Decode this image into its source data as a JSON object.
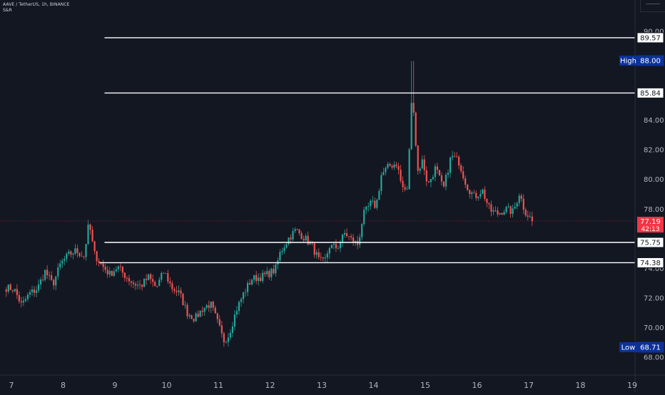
{
  "header": {
    "symbol_text": "AAVE / TetherUS, 1h, BINANCE",
    "indicator_text": "S&R"
  },
  "colors": {
    "background": "#131722",
    "up": "#26a69a",
    "down": "#ef5350",
    "level_line": "#ffffff",
    "axis_text": "#b2b5be",
    "high_low_badge": "#0c3299",
    "current_price_badge": "#f23645"
  },
  "chart_data": {
    "type": "candlestick",
    "symbol": "AAVE / TetherUS",
    "interval": "1h",
    "exchange": "BINANCE",
    "x_ticks": [
      "7",
      "8",
      "9",
      "10",
      "11",
      "12",
      "13",
      "14",
      "15",
      "16",
      "17",
      "18",
      "19"
    ],
    "y_ticks": [
      "68.00",
      "70.00",
      "72.00",
      "74.00",
      "78.00",
      "80.00",
      "82.00",
      "84.00",
      "90.00"
    ],
    "ylim": [
      67.2,
      90.4
    ],
    "xlim": [
      7.0,
      19.0
    ],
    "levels": [
      {
        "value": 89.57,
        "label": "89.57",
        "start_day": 8.8
      },
      {
        "value": 85.84,
        "label": "85.84",
        "start_day": 8.8
      },
      {
        "value": 75.75,
        "label": "75.75",
        "start_day": 8.8
      },
      {
        "value": 74.38,
        "label": "74.38",
        "start_day": 8.7
      }
    ],
    "high": {
      "label": "High",
      "value": "88.00"
    },
    "low": {
      "label": "Low",
      "value": "68.71"
    },
    "current_price": {
      "value": "77.19",
      "countdown": "42:13"
    },
    "anchors": [
      [
        6.9,
        72.7
      ],
      [
        7.05,
        72.6
      ],
      [
        7.2,
        71.5
      ],
      [
        7.35,
        72.3
      ],
      [
        7.5,
        72.6
      ],
      [
        7.65,
        73.8
      ],
      [
        7.8,
        72.9
      ],
      [
        7.95,
        74.3
      ],
      [
        8.1,
        74.9
      ],
      [
        8.25,
        75.2
      ],
      [
        8.4,
        74.8
      ],
      [
        8.5,
        77.1
      ],
      [
        8.6,
        75.0
      ],
      [
        8.75,
        74.2
      ],
      [
        8.9,
        73.6
      ],
      [
        9.05,
        74.1
      ],
      [
        9.2,
        73.5
      ],
      [
        9.35,
        73.0
      ],
      [
        9.5,
        72.8
      ],
      [
        9.65,
        73.4
      ],
      [
        9.8,
        72.7
      ],
      [
        9.95,
        73.8
      ],
      [
        10.1,
        72.7
      ],
      [
        10.25,
        72.3
      ],
      [
        10.4,
        71.0
      ],
      [
        10.55,
        70.6
      ],
      [
        10.7,
        71.3
      ],
      [
        10.85,
        71.6
      ],
      [
        11.0,
        70.2
      ],
      [
        11.1,
        69.1
      ],
      [
        11.2,
        69.5
      ],
      [
        11.35,
        71.2
      ],
      [
        11.5,
        72.4
      ],
      [
        11.65,
        73.3
      ],
      [
        11.8,
        73.4
      ],
      [
        11.95,
        73.6
      ],
      [
        12.1,
        73.9
      ],
      [
        12.2,
        75.1
      ],
      [
        12.35,
        76.0
      ],
      [
        12.5,
        76.6
      ],
      [
        12.65,
        76.1
      ],
      [
        12.8,
        75.6
      ],
      [
        12.95,
        74.5
      ],
      [
        13.05,
        74.4
      ],
      [
        13.15,
        75.5
      ],
      [
        13.3,
        75.4
      ],
      [
        13.45,
        76.4
      ],
      [
        13.55,
        76.0
      ],
      [
        13.7,
        75.6
      ],
      [
        13.8,
        77.6
      ],
      [
        13.95,
        78.4
      ],
      [
        14.05,
        78.2
      ],
      [
        14.15,
        80.3
      ],
      [
        14.3,
        80.9
      ],
      [
        14.45,
        81.1
      ],
      [
        14.55,
        79.5
      ],
      [
        14.65,
        79.2
      ],
      [
        14.75,
        86.2
      ],
      [
        14.85,
        80.5
      ],
      [
        14.95,
        81.3
      ],
      [
        15.05,
        79.6
      ],
      [
        15.2,
        80.8
      ],
      [
        15.35,
        79.3
      ],
      [
        15.5,
        81.6
      ],
      [
        15.65,
        81.2
      ],
      [
        15.8,
        79.6
      ],
      [
        15.95,
        78.8
      ],
      [
        16.1,
        79.3
      ],
      [
        16.25,
        77.9
      ],
      [
        16.4,
        77.7
      ],
      [
        16.55,
        78.0
      ],
      [
        16.7,
        77.8
      ],
      [
        16.82,
        79.1
      ],
      [
        16.92,
        77.9
      ],
      [
        17.05,
        77.3
      ],
      [
        17.1,
        77.19
      ]
    ],
    "high_day": 14.75,
    "low_day": 11.1
  }
}
